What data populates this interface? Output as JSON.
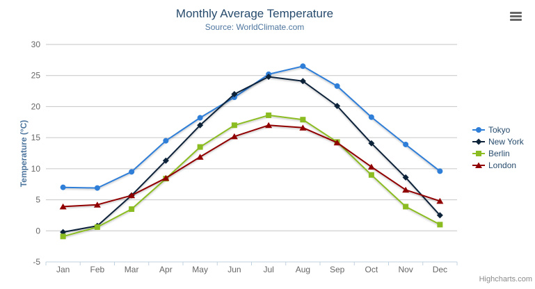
{
  "header": {
    "title": "Monthly Average Temperature",
    "subtitle": "Source: WorldClimate.com"
  },
  "credit": {
    "label": "Highcharts.com"
  },
  "chart_data": {
    "type": "line",
    "title": "Monthly Average Temperature",
    "subtitle": "Source: WorldClimate.com",
    "categories": [
      "Jan",
      "Feb",
      "Mar",
      "Apr",
      "May",
      "Jun",
      "Jul",
      "Aug",
      "Sep",
      "Oct",
      "Nov",
      "Dec"
    ],
    "series": [
      {
        "name": "Tokyo",
        "color": "#2f7ed8",
        "marker": "circle",
        "values": [
          7.0,
          6.9,
          9.5,
          14.5,
          18.2,
          21.5,
          25.2,
          26.5,
          23.3,
          18.3,
          13.9,
          9.6
        ]
      },
      {
        "name": "New York",
        "color": "#0d233a",
        "marker": "diamond",
        "values": [
          -0.2,
          0.8,
          5.7,
          11.3,
          17.0,
          22.0,
          24.8,
          24.1,
          20.1,
          14.1,
          8.6,
          2.5
        ]
      },
      {
        "name": "Berlin",
        "color": "#8bbc21",
        "marker": "square",
        "values": [
          -0.9,
          0.6,
          3.5,
          8.4,
          13.5,
          17.0,
          18.6,
          17.9,
          14.3,
          9.0,
          3.9,
          1.0
        ]
      },
      {
        "name": "London",
        "color": "#910000",
        "marker": "triangle",
        "values": [
          3.9,
          4.2,
          5.7,
          8.5,
          11.9,
          15.2,
          17.0,
          16.6,
          14.2,
          10.3,
          6.6,
          4.8
        ]
      }
    ],
    "xlabel": "",
    "ylabel": "Temperature (°C)",
    "ylim": [
      -5,
      30
    ],
    "y_ticks": [
      -5,
      0,
      5,
      10,
      15,
      20,
      25,
      30
    ],
    "grid": true,
    "legend_position": "right"
  },
  "colors": {
    "title": "#274b6d",
    "subtitle": "#4d759e",
    "axis_label": "#666666",
    "axis_line": "#c0d0e0",
    "gridline": "#c6c6c6",
    "legend_text": "#274b6d",
    "credit": "#8a8a8a"
  }
}
